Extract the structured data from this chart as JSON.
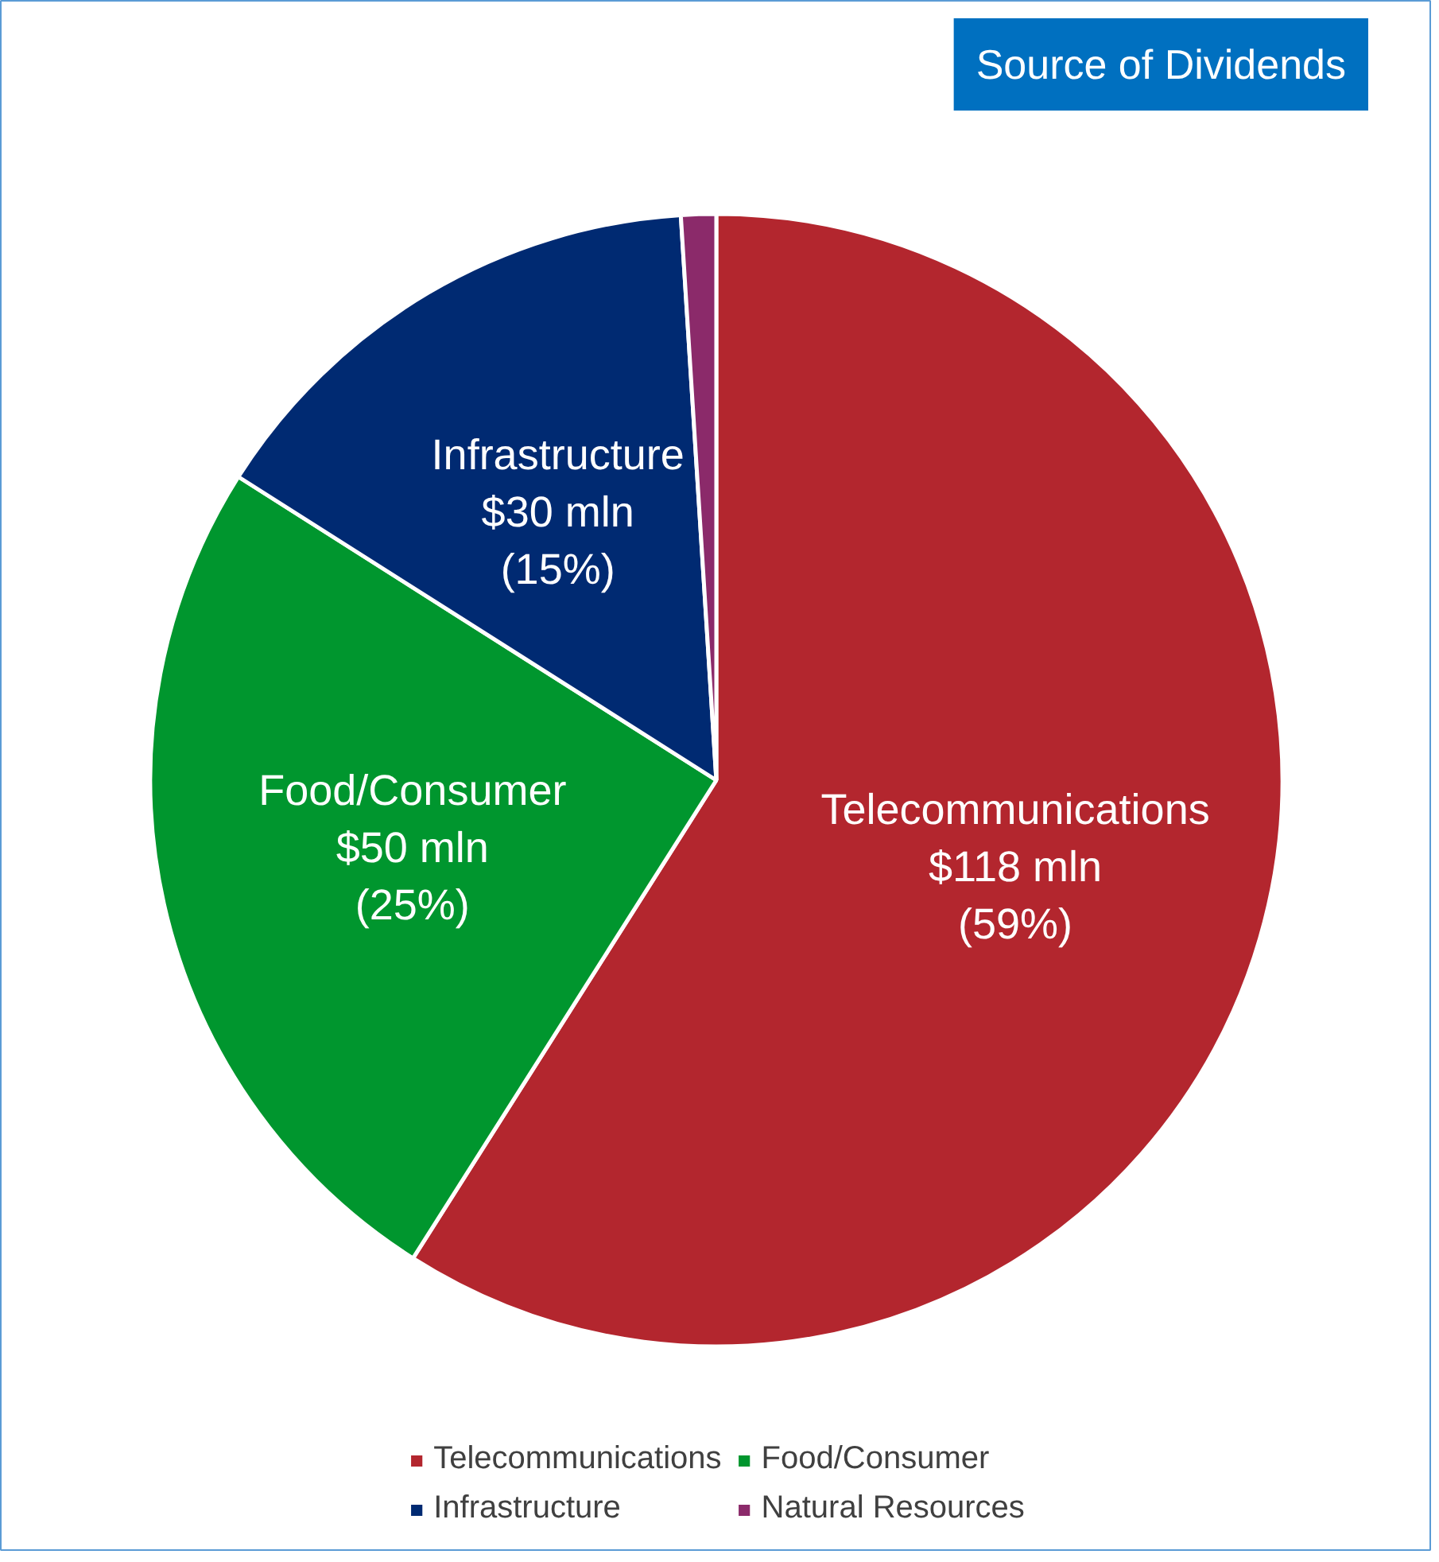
{
  "chart_data": {
    "type": "pie",
    "title": "Source of Dividends",
    "categories": [
      "Telecommunications",
      "Food/Consumer",
      "Infrastructure",
      "Natural Resources"
    ],
    "values": [
      59,
      25,
      15,
      1
    ],
    "colors": [
      "#b3262e",
      "#00962e",
      "#002a72",
      "#8b2a6a"
    ],
    "value_labels": [
      "$118 mln\n(59%)",
      "$50 mln\n(25%)",
      "$30 mln\n(15%)",
      null
    ],
    "legend": "bottom"
  }
}
